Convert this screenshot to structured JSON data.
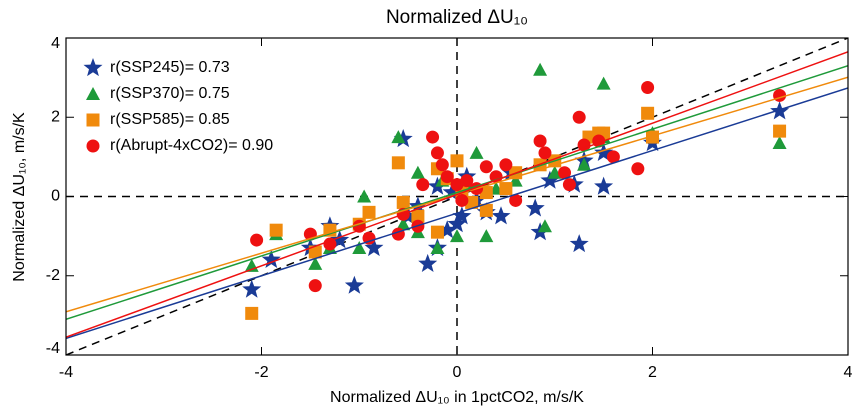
{
  "chart_data": {
    "type": "scatter",
    "title": "Normalized ΔU₁₀",
    "x_label": "Normalized ΔU₁₀ in 1pctCO2, m/s/K",
    "y_label": "Normalized ΔU₁₀, m/s/K",
    "xlim": [
      -4,
      4
    ],
    "ylim": [
      -4,
      4
    ],
    "xticks": [
      -4,
      -2,
      0,
      2,
      4
    ],
    "yticks": [
      -4,
      -2,
      0,
      2,
      4
    ],
    "legend": "upper left",
    "series": [
      {
        "name": "r(SSP245)= 0.73",
        "color": "#1a3b96",
        "marker": "star",
        "fit": {
          "slope": 0.79,
          "intercept": -0.42
        },
        "x": [
          -2.1,
          -1.9,
          -1.5,
          -1.2,
          -1.3,
          -1.05,
          -0.85,
          -0.55,
          -0.5,
          -0.4,
          -0.3,
          -0.2,
          -0.1,
          0,
          0.05,
          -0.05,
          0.2,
          0.3,
          0.45,
          0.55,
          0.8,
          0.85,
          0.95,
          1.2,
          1.25,
          1.3,
          1.5,
          1.5,
          2,
          3.3,
          -0.2,
          0.1
        ],
        "y": [
          -2.35,
          -1.6,
          -1.3,
          -1.1,
          -0.75,
          -2.25,
          -1.3,
          1.45,
          -0.5,
          -0.25,
          -1.7,
          -1.3,
          -0.85,
          -0.7,
          -0.5,
          0.1,
          -0.1,
          -0.4,
          -0.5,
          0.6,
          -0.3,
          -0.9,
          0.4,
          0.3,
          -1.2,
          0.9,
          0.25,
          1.1,
          1.35,
          2.15,
          0.25,
          0.5
        ]
      },
      {
        "name": "r(SSP370)= 0.75",
        "color": "#1f9a3a",
        "marker": "triangle",
        "fit": {
          "slope": 0.8,
          "intercept": 0.1
        },
        "x": [
          -2.1,
          -1.85,
          -1.45,
          -1.3,
          -1.0,
          -0.95,
          -0.6,
          -0.55,
          -0.4,
          -0.2,
          -0.15,
          0.0,
          0.1,
          0.3,
          0.4,
          0.6,
          0.85,
          0.9,
          1.0,
          1.3,
          1.5,
          1.5,
          2.0,
          3.3,
          -0.4,
          0.2
        ],
        "y": [
          -1.75,
          -0.95,
          -1.7,
          -1.3,
          -1.3,
          0,
          1.5,
          -0.7,
          -0.9,
          -1.3,
          0.4,
          -1.0,
          0.3,
          -1.0,
          0.2,
          0.4,
          3.2,
          -0.75,
          0.6,
          0.8,
          2.85,
          1.5,
          1.6,
          1.35,
          0.6,
          1.1
        ]
      },
      {
        "name": "r(SSP585)= 0.85",
        "color": "#f08a0c",
        "marker": "square",
        "fit": {
          "slope": 0.74,
          "intercept": 0.05
        },
        "x": [
          -2.1,
          -1.85,
          -1.45,
          -1.3,
          -1.0,
          -0.9,
          -0.6,
          -0.55,
          -0.4,
          -0.2,
          -0.1,
          0,
          0.05,
          0.15,
          0.3,
          0.5,
          0.6,
          0.85,
          1.0,
          1.35,
          1.45,
          1.5,
          1.95,
          2,
          3.3,
          -0.2,
          0.3
        ],
        "y": [
          -2.95,
          -0.85,
          -1.4,
          -0.85,
          -0.7,
          -0.4,
          0.85,
          -0.15,
          -0.5,
          0.7,
          0.45,
          0.9,
          0.1,
          -0.15,
          -0.35,
          0.2,
          0.6,
          0.8,
          0.9,
          1.5,
          1.6,
          1.6,
          2.1,
          1.5,
          1.65,
          -0.9,
          0.1
        ]
      },
      {
        "name": "r(Abrupt-4xCO2)= 0.90",
        "color": "#ee1111",
        "marker": "circle",
        "fit": {
          "slope": 0.9,
          "intercept": 0.05
        },
        "x": [
          -2.05,
          -1.5,
          -1.45,
          -1.3,
          -1.0,
          -0.9,
          -0.6,
          -0.55,
          -0.4,
          -0.25,
          -0.2,
          -0.15,
          -0.1,
          0,
          0.05,
          0.1,
          0.2,
          0.3,
          0.4,
          0.5,
          0.6,
          0.85,
          0.9,
          1.1,
          1.15,
          1.3,
          1.45,
          1.6,
          1.85,
          1.95,
          3.3,
          1.25,
          -0.35
        ],
        "y": [
          -1.1,
          -0.95,
          -2.25,
          -1.2,
          -0.75,
          -1.05,
          -0.95,
          -0.45,
          -0.75,
          1.5,
          1.1,
          0.8,
          0.5,
          0.3,
          -0.1,
          0.4,
          0.2,
          0.75,
          0.5,
          0.8,
          -0.1,
          1.4,
          1.1,
          0.6,
          0.3,
          1.3,
          1.4,
          1.0,
          0.7,
          2.75,
          2.55,
          2.0,
          0.3
        ]
      }
    ]
  }
}
